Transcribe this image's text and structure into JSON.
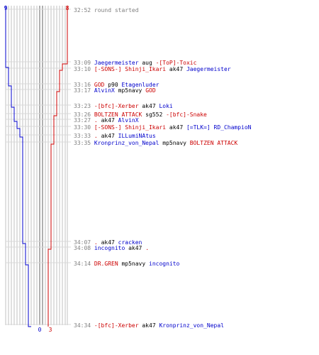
{
  "scores": {
    "blue_start": "9",
    "red_start": "8",
    "blue_end": "0",
    "red_end": "3"
  },
  "colors": {
    "blue_team": "#0000cc",
    "red_team": "#cc0000",
    "player_lines": "#c0c0c0",
    "neutral": "#808080"
  },
  "events": [
    {
      "time": "32:52",
      "parts": [
        {
          "text": "round started",
          "team": "gray"
        }
      ]
    },
    {
      "time": "33:09",
      "parts": [
        {
          "text": "Jaegermeister",
          "team": "blue"
        },
        {
          "text": " aug ",
          "team": "black"
        },
        {
          "text": "-[ToP]-Toxic",
          "team": "red"
        }
      ]
    },
    {
      "time": "33:10",
      "parts": [
        {
          "text": "[-SONS-] Shinji_Ikari",
          "team": "red"
        },
        {
          "text": " ak47 ",
          "team": "black"
        },
        {
          "text": "Jaegermeister",
          "team": "blue"
        }
      ]
    },
    {
      "time": "33:16",
      "parts": [
        {
          "text": "GOD",
          "team": "red"
        },
        {
          "text": " p90 ",
          "team": "black"
        },
        {
          "text": "Etagenluder",
          "team": "blue"
        }
      ]
    },
    {
      "time": "33:17",
      "parts": [
        {
          "text": "AlvinX",
          "team": "blue"
        },
        {
          "text": " mp5navy ",
          "team": "black"
        },
        {
          "text": "GOD",
          "team": "red"
        }
      ]
    },
    {
      "time": "33:23",
      "parts": [
        {
          "text": "-[bfc]-Xerber",
          "team": "red"
        },
        {
          "text": " ak47 ",
          "team": "black"
        },
        {
          "text": "Loki",
          "team": "blue"
        }
      ]
    },
    {
      "time": "33:26",
      "parts": [
        {
          "text": "BOLTZEN ATTACK",
          "team": "red"
        },
        {
          "text": " sg552 ",
          "team": "black"
        },
        {
          "text": "-[bfc]-Snake",
          "team": "red"
        }
      ]
    },
    {
      "time": "33:27",
      "parts": [
        {
          "text": ".",
          "team": "red"
        },
        {
          "text": " ak47 ",
          "team": "black"
        },
        {
          "text": "AlvinX",
          "team": "blue"
        }
      ]
    },
    {
      "time": "33:30",
      "parts": [
        {
          "text": "[-SONS-] Shinji_Ikari",
          "team": "red"
        },
        {
          "text": " ak47 ",
          "team": "black"
        },
        {
          "text": "[=TLK=] RD_ChampioN",
          "team": "blue"
        }
      ]
    },
    {
      "time": "33:33",
      "parts": [
        {
          "text": ".",
          "team": "red"
        },
        {
          "text": " ak47 ",
          "team": "black"
        },
        {
          "text": "ILLumiNAtus",
          "team": "blue"
        }
      ]
    },
    {
      "time": "33:35",
      "parts": [
        {
          "text": "Kronprinz_von_Nepal",
          "team": "blue"
        },
        {
          "text": " mp5navy ",
          "team": "black"
        },
        {
          "text": "BOLTZEN ATTACK",
          "team": "red"
        }
      ]
    },
    {
      "time": "34:07",
      "parts": [
        {
          "text": ".",
          "team": "red"
        },
        {
          "text": " ak47 ",
          "team": "black"
        },
        {
          "text": "cracken",
          "team": "blue"
        }
      ]
    },
    {
      "time": "34:08",
      "parts": [
        {
          "text": "incognito",
          "team": "blue"
        },
        {
          "text": " ak47 ",
          "team": "black"
        },
        {
          "text": ".",
          "team": "red"
        }
      ]
    },
    {
      "time": "34:14",
      "parts": [
        {
          "text": "DR.GREN",
          "team": "red"
        },
        {
          "text": " mp5navy ",
          "team": "black"
        },
        {
          "text": "incognito",
          "team": "blue"
        }
      ]
    },
    {
      "time": "34:34",
      "parts": [
        {
          "text": "-[bfc]-Xerber",
          "team": "red"
        },
        {
          "text": " ak47 ",
          "team": "black"
        },
        {
          "text": "Kronprinz_von_Nepal",
          "team": "blue"
        }
      ]
    }
  ]
}
